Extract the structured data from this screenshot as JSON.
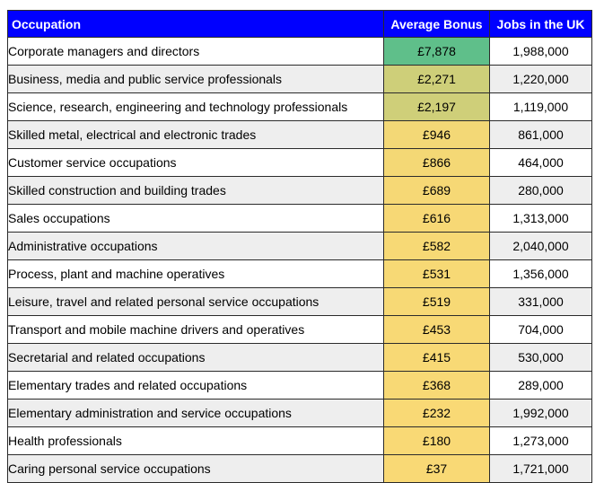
{
  "chart_data": {
    "type": "table",
    "columns": [
      "Occupation",
      "Average Bonus",
      "Jobs in the UK"
    ],
    "rows": [
      {
        "occupation": "Corporate managers and directors",
        "bonus": "£7,878",
        "bonus_value": 7878,
        "jobs": "1,988,000"
      },
      {
        "occupation": "Business, media and public service professionals",
        "bonus": "£2,271",
        "bonus_value": 2271,
        "jobs": "1,220,000"
      },
      {
        "occupation": "Science, research, engineering and technology professionals",
        "bonus": "£2,197",
        "bonus_value": 2197,
        "jobs": "1,119,000"
      },
      {
        "occupation": "Skilled metal, electrical and electronic trades",
        "bonus": "£946",
        "bonus_value": 946,
        "jobs": "861,000"
      },
      {
        "occupation": "Customer service occupations",
        "bonus": "£866",
        "bonus_value": 866,
        "jobs": "464,000"
      },
      {
        "occupation": "Skilled construction and building trades",
        "bonus": "£689",
        "bonus_value": 689,
        "jobs": "280,000"
      },
      {
        "occupation": "Sales occupations",
        "bonus": "£616",
        "bonus_value": 616,
        "jobs": "1,313,000"
      },
      {
        "occupation": "Administrative occupations",
        "bonus": "£582",
        "bonus_value": 582,
        "jobs": "2,040,000"
      },
      {
        "occupation": "Process, plant and machine operatives",
        "bonus": "£531",
        "bonus_value": 531,
        "jobs": "1,356,000"
      },
      {
        "occupation": "Leisure, travel and related personal service occupations",
        "bonus": "£519",
        "bonus_value": 519,
        "jobs": "331,000"
      },
      {
        "occupation": "Transport and mobile machine drivers and operatives",
        "bonus": "£453",
        "bonus_value": 453,
        "jobs": "704,000"
      },
      {
        "occupation": "Secretarial and related occupations",
        "bonus": "£415",
        "bonus_value": 415,
        "jobs": "530,000"
      },
      {
        "occupation": "Elementary trades and related occupations",
        "bonus": "£368",
        "bonus_value": 368,
        "jobs": "289,000"
      },
      {
        "occupation": "Elementary administration and service occupations",
        "bonus": "£232",
        "bonus_value": 232,
        "jobs": "1,992,000"
      },
      {
        "occupation": "Health professionals",
        "bonus": "£180",
        "bonus_value": 180,
        "jobs": "1,273,000"
      },
      {
        "occupation": "Caring personal service occupations",
        "bonus": "£37",
        "bonus_value": 37,
        "jobs": "1,721,000"
      }
    ],
    "color_scale": {
      "low": "#f9d975",
      "mid": "#cfcf79",
      "high": "#5fbf8a"
    },
    "header_color": "#0000ff",
    "header_text_color": "#ffffff"
  }
}
